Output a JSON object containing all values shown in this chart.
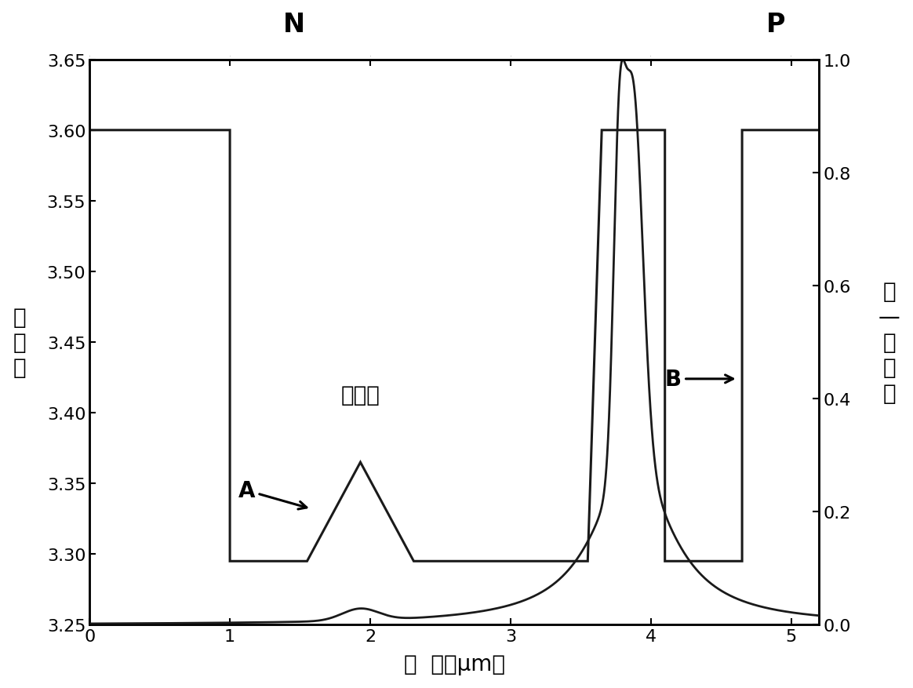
{
  "xlabel": "距  离（μm）",
  "ylabel_left": "折\n射\n率",
  "ylabel_right": "归\n—\n化\n光\n强",
  "label_N": "N",
  "label_P": "P",
  "label_A": "A",
  "label_B": "B",
  "label_lighttrap": "光阱阱",
  "xlim": [
    0,
    5.2
  ],
  "ylim_left": [
    3.25,
    3.65
  ],
  "ylim_right": [
    0.0,
    1.0
  ],
  "xticks": [
    0,
    1,
    2,
    3,
    4,
    5
  ],
  "yticks_left": [
    3.25,
    3.3,
    3.35,
    3.4,
    3.45,
    3.5,
    3.55,
    3.6,
    3.65
  ],
  "yticks_right": [
    0.0,
    0.2,
    0.4,
    0.6,
    0.8,
    1.0
  ],
  "ri_x": [
    0.0,
    0.3,
    0.3,
    1.0,
    1.0,
    1.55,
    1.93,
    2.31,
    2.31,
    3.55,
    3.55,
    3.65,
    3.65,
    4.1,
    4.1,
    4.65,
    4.65,
    5.2
  ],
  "ri_y": [
    3.6,
    3.6,
    3.6,
    3.6,
    3.295,
    3.295,
    3.365,
    3.295,
    3.295,
    3.295,
    3.295,
    3.6,
    3.6,
    3.6,
    3.295,
    3.295,
    3.6,
    3.6
  ],
  "background_color": "#ffffff",
  "line_color": "#1a1a1a",
  "fontsize_labels": 20,
  "fontsize_ticks": 16,
  "fontsize_annot": 20,
  "fontsize_NP": 24
}
